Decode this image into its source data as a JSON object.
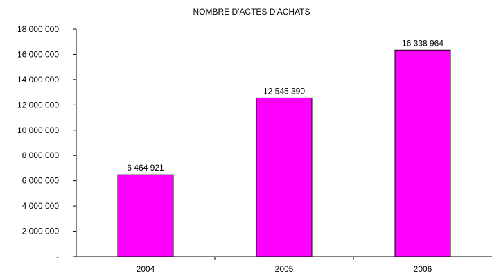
{
  "chart_data": {
    "type": "bar",
    "title": "NOMBRE D'ACTES D'ACHATS",
    "xlabel": "",
    "ylabel": "",
    "categories": [
      "2004",
      "2005",
      "2006"
    ],
    "values": [
      6464921,
      12545390,
      16338964
    ],
    "data_labels": [
      "6 464 921",
      "12 545 390",
      "16 338 964"
    ],
    "ylim": [
      0,
      18000000
    ],
    "yticks": [
      0,
      2000000,
      4000000,
      6000000,
      8000000,
      10000000,
      12000000,
      14000000,
      16000000,
      18000000
    ],
    "ytick_labels": [
      "-",
      "2 000 000",
      "4 000 000",
      "6 000 000",
      "8 000 000",
      "10 000 000",
      "12 000 000",
      "14 000 000",
      "16 000 000",
      "18 000 000"
    ],
    "grid": false,
    "legend": "none",
    "colors": {
      "bar_fill": "#ff00ff",
      "bar_stroke": "#000000",
      "axis": "#000000"
    }
  }
}
